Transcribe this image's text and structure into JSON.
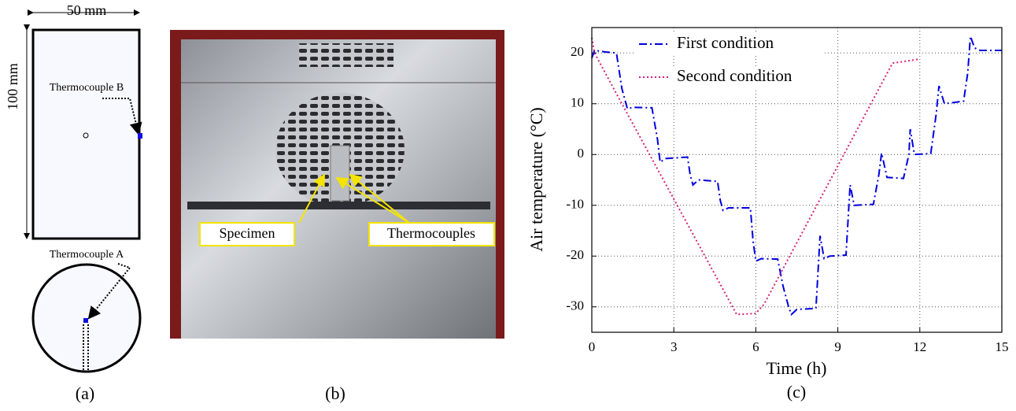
{
  "panel_a": {
    "width_label": "50 mm",
    "height_label": "100 mm",
    "label_b": "Thermocouple B",
    "label_a": "Thermocouple A",
    "caption": "(a)"
  },
  "panel_b": {
    "labels": [
      "Specimen",
      "Thermocouples"
    ],
    "caption": "(b)"
  },
  "chart_data": {
    "type": "line",
    "caption": "(c)",
    "x_label": "Time (h)",
    "y_label": "Air temperature (°C)",
    "xlim": [
      0,
      15
    ],
    "ylim": [
      -35,
      25
    ],
    "xticks": [
      0,
      3,
      6,
      9,
      12,
      15
    ],
    "yticks": [
      -30,
      -20,
      -10,
      0,
      10,
      20
    ],
    "grid": true,
    "legend": "upper left",
    "series": [
      {
        "name": "First condition",
        "color": "#0000dd",
        "dash": "dash-dot",
        "x": [
          0,
          0.1,
          0.5,
          0.9,
          1.1,
          1.3,
          1.5,
          2.2,
          2.4,
          2.5,
          2.7,
          3.5,
          3.6,
          3.7,
          3.9,
          4.6,
          4.7,
          4.8,
          5,
          5.8,
          5.9,
          6,
          6.2,
          6.8,
          7,
          7.2,
          7.3,
          7.5,
          8.2,
          8.35,
          8.5,
          8.7,
          9.3,
          9.45,
          9.6,
          10.3,
          10.5,
          10.6,
          10.8,
          11.4,
          11.6,
          11.65,
          11.8,
          12.4,
          12.6,
          12.7,
          12.9,
          13.6,
          13.75,
          13.85,
          14,
          14.2,
          15
        ],
        "values": [
          19,
          20.5,
          20.2,
          20,
          13,
          9,
          9.3,
          9.2,
          3,
          -1.5,
          -0.8,
          -0.5,
          -4,
          -6,
          -5,
          -5.3,
          -9,
          -11,
          -10.5,
          -10.5,
          -17,
          -21,
          -20.5,
          -20.6,
          -26,
          -30,
          -31.5,
          -30.5,
          -30.3,
          -16,
          -20.5,
          -20,
          -19.8,
          -6,
          -10,
          -9.8,
          -4,
          0.3,
          -4.5,
          -4.7,
          0,
          5,
          0,
          0.2,
          8,
          13.5,
          10,
          10.5,
          16,
          23.3,
          21,
          20.5,
          20.5
        ]
      },
      {
        "name": "Second condition",
        "color": "#d4207a",
        "dash": "dotted",
        "x": [
          0,
          0.1,
          0.3,
          1,
          5.3,
          6,
          6.3,
          11,
          12
        ],
        "values": [
          23,
          20,
          18,
          11,
          -31.5,
          -31.3,
          -29.5,
          18,
          18.8
        ]
      }
    ]
  }
}
